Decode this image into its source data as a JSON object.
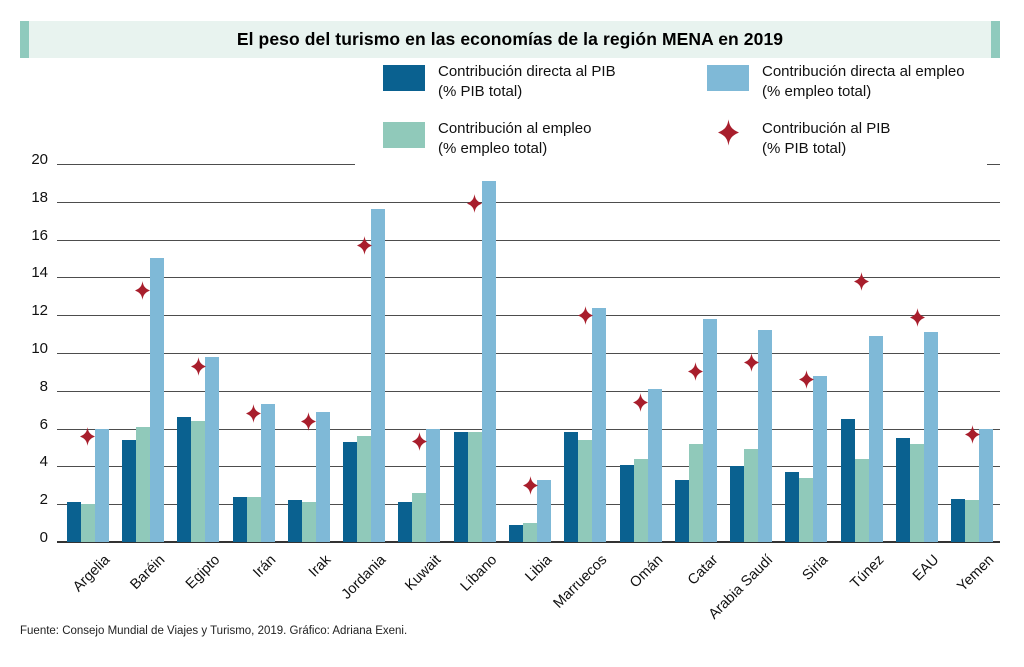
{
  "title": {
    "text": "El peso del turismo en las economías de la región MENA en 2019"
  },
  "colors": {
    "dark_blue": "#0a6190",
    "light_blue": "#7fb9d7",
    "green": "#90c9ba",
    "red": "#a81e2c",
    "gridline": "#4d4d4d",
    "axis": "#333333",
    "title_bar_bg": "#e8f3ef",
    "title_accent": "#8fcabd"
  },
  "legend": {
    "items": [
      {
        "swatch": "dark_blue",
        "line1": "Contribución directa al PIB",
        "line2": "(% PIB total)"
      },
      {
        "swatch": "light_blue",
        "line1": "Contribución directa al empleo",
        "line2": "(% empleo total)"
      },
      {
        "swatch": "green",
        "line1": "Contribución al empleo",
        "line2": "(% empleo total)"
      },
      {
        "swatch": "red_diamond",
        "line1": "Contribución al PIB",
        "line2": "(% PIB total)"
      }
    ]
  },
  "chart_data": {
    "type": "bar",
    "title": "El peso del turismo en las economías de la región MENA en 2019",
    "categories": [
      "Argelia",
      "Baréin",
      "Egipto",
      "Irán",
      "Irak",
      "Jordania",
      "Kuwait",
      "Líbano",
      "Libia",
      "Marruecos",
      "Omán",
      "Catar",
      "Arabia Saudí",
      "Siria",
      "Túnez",
      "EAU",
      "Yemen"
    ],
    "series": [
      {
        "name": "Contribución directa al PIB (% PIB total)",
        "color": "dark_blue",
        "values": [
          2.1,
          5.4,
          6.6,
          2.4,
          2.2,
          5.3,
          2.1,
          5.8,
          0.9,
          5.8,
          4.1,
          3.3,
          4.0,
          3.7,
          6.5,
          5.5,
          2.3
        ]
      },
      {
        "name": "Contribución al empleo (% empleo total)",
        "color": "green",
        "values": [
          2.0,
          6.1,
          6.4,
          2.4,
          2.1,
          5.6,
          2.6,
          5.8,
          1.0,
          5.4,
          4.4,
          5.2,
          4.9,
          3.4,
          4.4,
          5.2,
          2.2
        ]
      },
      {
        "name": "Contribución directa al empleo (% empleo total)",
        "color": "light_blue",
        "values": [
          6.0,
          15.0,
          9.8,
          7.3,
          6.9,
          17.6,
          6.0,
          19.1,
          3.3,
          12.4,
          8.1,
          11.8,
          11.2,
          8.8,
          10.9,
          11.1,
          6.0
        ]
      }
    ],
    "scatter": {
      "name": "Contribución al PIB (% PIB total)",
      "marker": "diamond",
      "color": "red",
      "values": [
        5.6,
        13.3,
        9.3,
        6.8,
        6.4,
        15.7,
        5.3,
        17.9,
        3.0,
        12.0,
        7.4,
        9.0,
        9.5,
        8.6,
        13.8,
        11.9,
        5.7
      ]
    },
    "ylim": [
      0,
      20
    ],
    "yticks": [
      0,
      2,
      4,
      6,
      8,
      10,
      12,
      14,
      16,
      18,
      20
    ],
    "grid": true,
    "legend_position": "top"
  },
  "source": {
    "text": "Fuente: Consejo Mundial de Viajes y Turismo, 2019. Gráfico: Adriana Exeni."
  }
}
